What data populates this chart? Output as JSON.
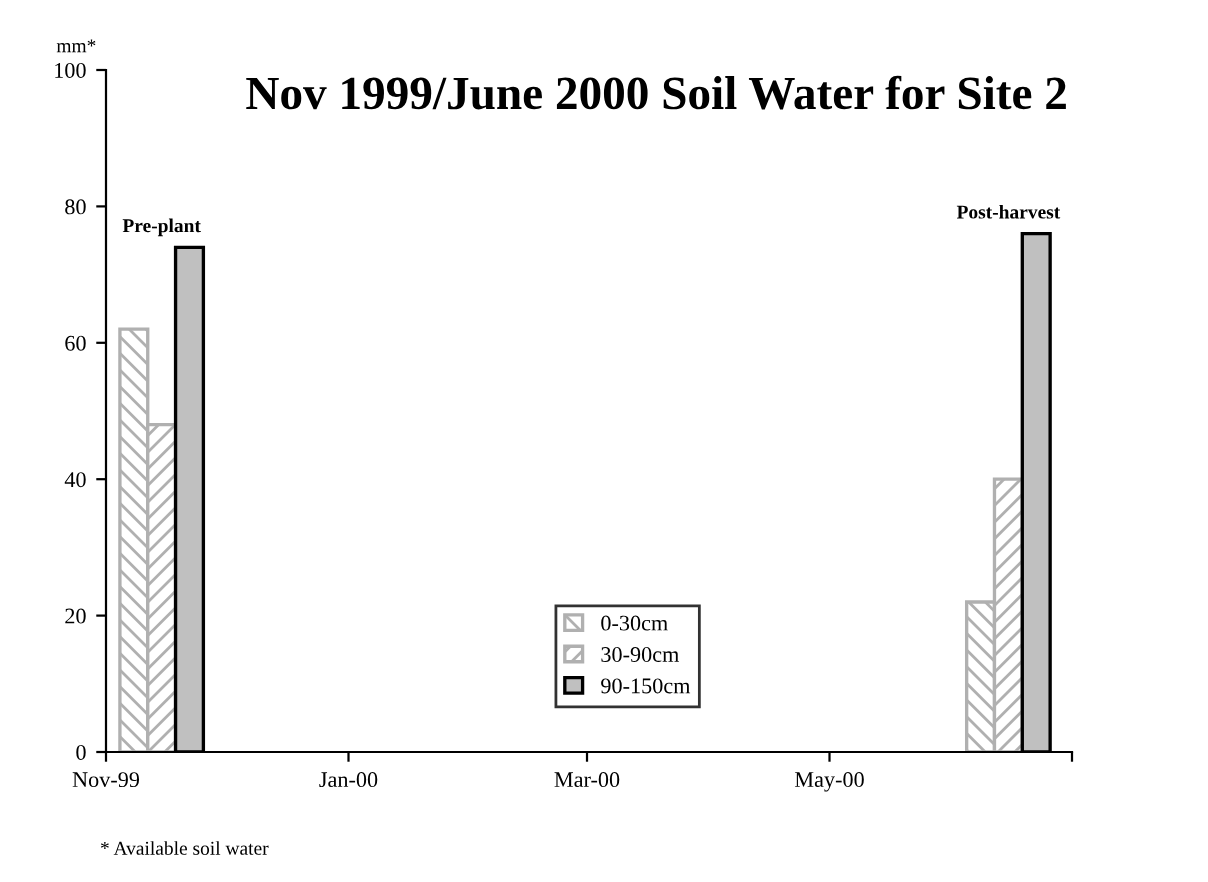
{
  "chart_data": {
    "type": "bar",
    "title": "Nov 1999/June 2000 Soil Water for Site 2",
    "ylabel": "mm*",
    "x": [
      "1999-11-15",
      "2000-06-15"
    ],
    "series": [
      {
        "name": "0-30cm",
        "color": "#b0b0b0",
        "values": [
          62,
          22
        ]
      },
      {
        "name": "30-90cm",
        "color": "#b0b0b0",
        "values": [
          48,
          40
        ]
      },
      {
        "name": "90-150cm",
        "color": "#c0c0c0",
        "values": [
          74,
          76
        ]
      }
    ],
    "xlim": [
      "1999-11-01",
      "2000-07-01"
    ],
    "xticks": [
      {
        "value": "1999-11-01",
        "label": "Nov-99"
      },
      {
        "value": "2000-01-01",
        "label": "Jan-00"
      },
      {
        "value": "2000-03-01",
        "label": "Mar-00"
      },
      {
        "value": "2000-05-01",
        "label": "May-00"
      },
      {
        "value": "2000-07-01",
        "label": null
      }
    ],
    "ylim": [
      0,
      100
    ],
    "yticks": [
      0,
      20,
      40,
      60,
      80,
      100
    ],
    "annotations": [
      "Pre-plant",
      "Post-harvest",
      "* Available soil water"
    ],
    "grid": false,
    "legend": "bottom"
  }
}
